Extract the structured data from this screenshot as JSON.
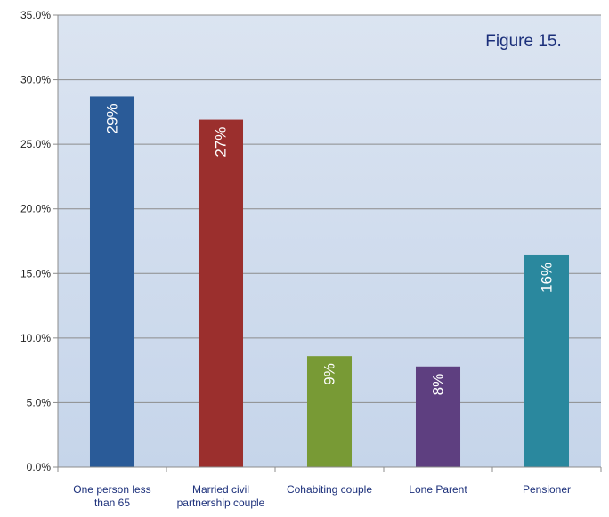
{
  "figure_label": "Figure 15.",
  "chart_data": {
    "type": "bar",
    "categories": [
      [
        "One person less",
        "than 65"
      ],
      [
        "Married civil",
        "partnership couple"
      ],
      [
        "Cohabiting couple"
      ],
      [
        "Lone Parent"
      ],
      [
        "Pensioner"
      ]
    ],
    "values": [
      0.287,
      0.269,
      0.086,
      0.078,
      0.164
    ],
    "data_labels": [
      "29%",
      "27%",
      "9%",
      "8%",
      "16%"
    ],
    "colors": [
      "#2a5b98",
      "#9b2f2d",
      "#789a35",
      "#5e3f80",
      "#2a889e"
    ],
    "ylim": [
      0,
      0.35
    ],
    "y_ticks": [
      0,
      0.05,
      0.1,
      0.15,
      0.2,
      0.25,
      0.3,
      0.35
    ],
    "y_tick_labels": [
      "0.0%",
      "5.0%",
      "10.0%",
      "15.0%",
      "20.0%",
      "25.0%",
      "30.0%",
      "35.0%"
    ],
    "grid": true,
    "plot_background": [
      "#dbe4f1",
      "#c6d5ea"
    ]
  }
}
